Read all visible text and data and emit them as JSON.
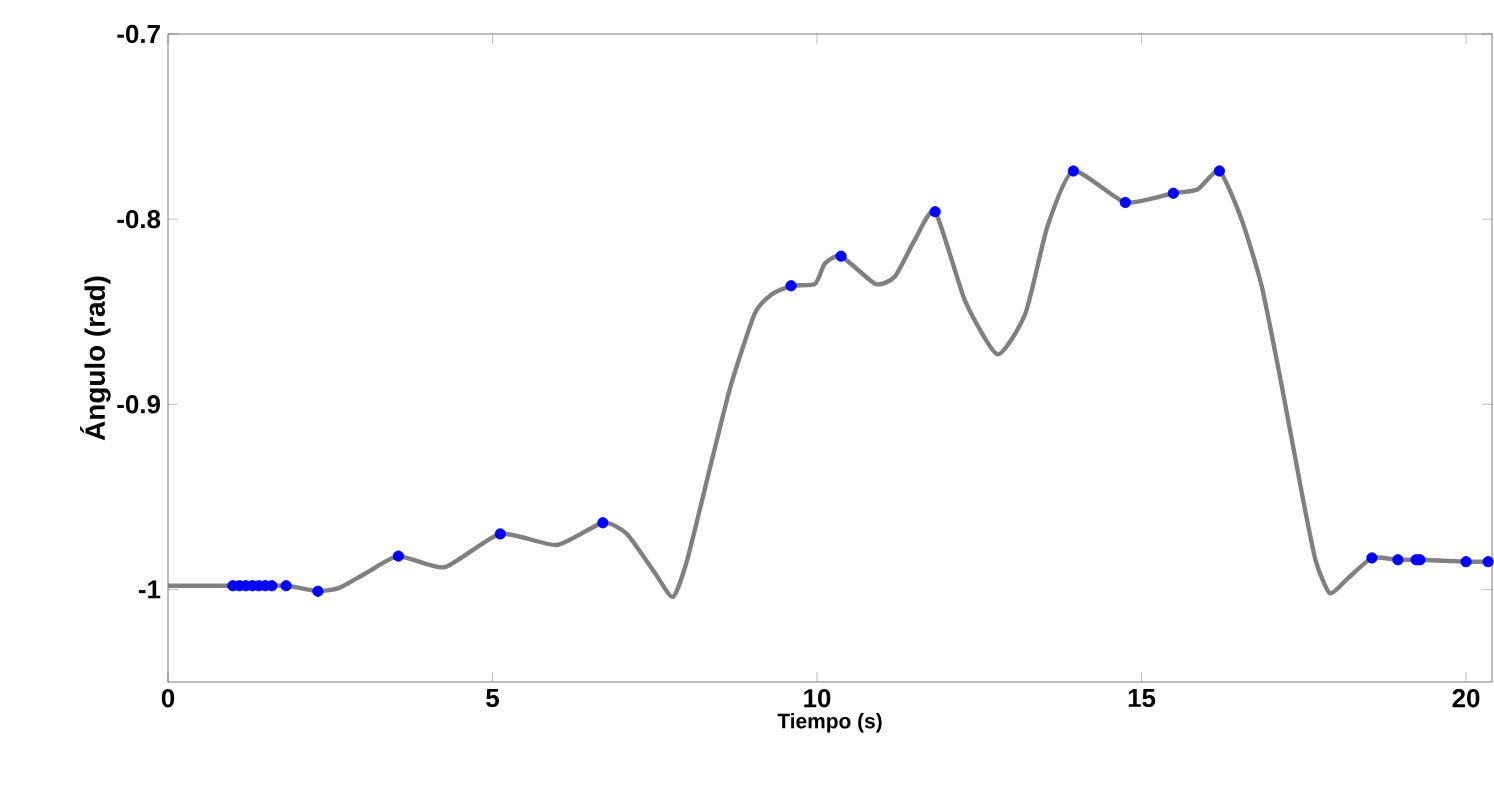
{
  "chart_data": {
    "type": "line",
    "xlabel": "Tiempo (s)",
    "ylabel": "Ángulo (rad)",
    "xlim": [
      0,
      20.4
    ],
    "ylim": [
      -1.05,
      -0.7
    ],
    "xticks": [
      0,
      5,
      10,
      15,
      20
    ],
    "yticks": [
      -1,
      -0.9,
      -0.8,
      -0.7
    ],
    "series": [
      {
        "type": "line",
        "color": "#808080",
        "marker": "none",
        "line_style": "solid",
        "x": [
          0,
          1.0,
          1.82,
          2.31,
          2.65,
          3.06,
          3.55,
          4.26,
          5.12,
          5.99,
          6.7,
          7.07,
          7.5,
          7.78,
          8.0,
          8.36,
          8.67,
          9.04,
          9.29,
          9.6,
          9.97,
          10.12,
          10.37,
          10.9,
          11.2,
          11.51,
          11.82,
          12.28,
          12.78,
          13.21,
          13.55,
          13.95,
          14.75,
          15.49,
          15.86,
          16.2,
          16.54,
          16.85,
          17.16,
          17.47,
          17.68,
          17.9,
          18.18,
          18.55,
          18.95,
          19.29,
          20.0,
          20.4
        ],
        "values": [
          -0.998,
          -0.998,
          -0.998,
          -1.001,
          -0.999,
          -0.991,
          -0.982,
          -0.988,
          -0.97,
          -0.976,
          -0.964,
          -0.97,
          -0.991,
          -1.004,
          -0.984,
          -0.933,
          -0.89,
          -0.851,
          -0.841,
          -0.836,
          -0.835,
          -0.824,
          -0.82,
          -0.835,
          -0.831,
          -0.811,
          -0.796,
          -0.844,
          -0.873,
          -0.851,
          -0.804,
          -0.774,
          -0.791,
          -0.786,
          -0.784,
          -0.774,
          -0.8,
          -0.836,
          -0.89,
          -0.948,
          -0.984,
          -1.002,
          -0.994,
          -0.983,
          -0.984,
          -0.984,
          -0.985,
          -0.985
        ]
      },
      {
        "type": "scatter",
        "color": "#0000ff",
        "marker": "circle",
        "x": [
          1.0,
          1.1,
          1.2,
          1.3,
          1.4,
          1.5,
          1.6,
          1.82,
          2.31,
          3.55,
          5.12,
          6.7,
          9.6,
          10.37,
          11.82,
          13.95,
          14.75,
          15.49,
          16.2,
          18.55,
          18.95,
          19.23,
          19.29,
          20.0,
          20.34
        ],
        "values": [
          -0.998,
          -0.998,
          -0.998,
          -0.998,
          -0.998,
          -0.998,
          -0.998,
          -0.998,
          -1.001,
          -0.982,
          -0.97,
          -0.964,
          -0.836,
          -0.82,
          -0.796,
          -0.774,
          -0.791,
          -0.786,
          -0.774,
          -0.983,
          -0.984,
          -0.984,
          -0.984,
          -0.985,
          -0.985
        ]
      }
    ]
  }
}
